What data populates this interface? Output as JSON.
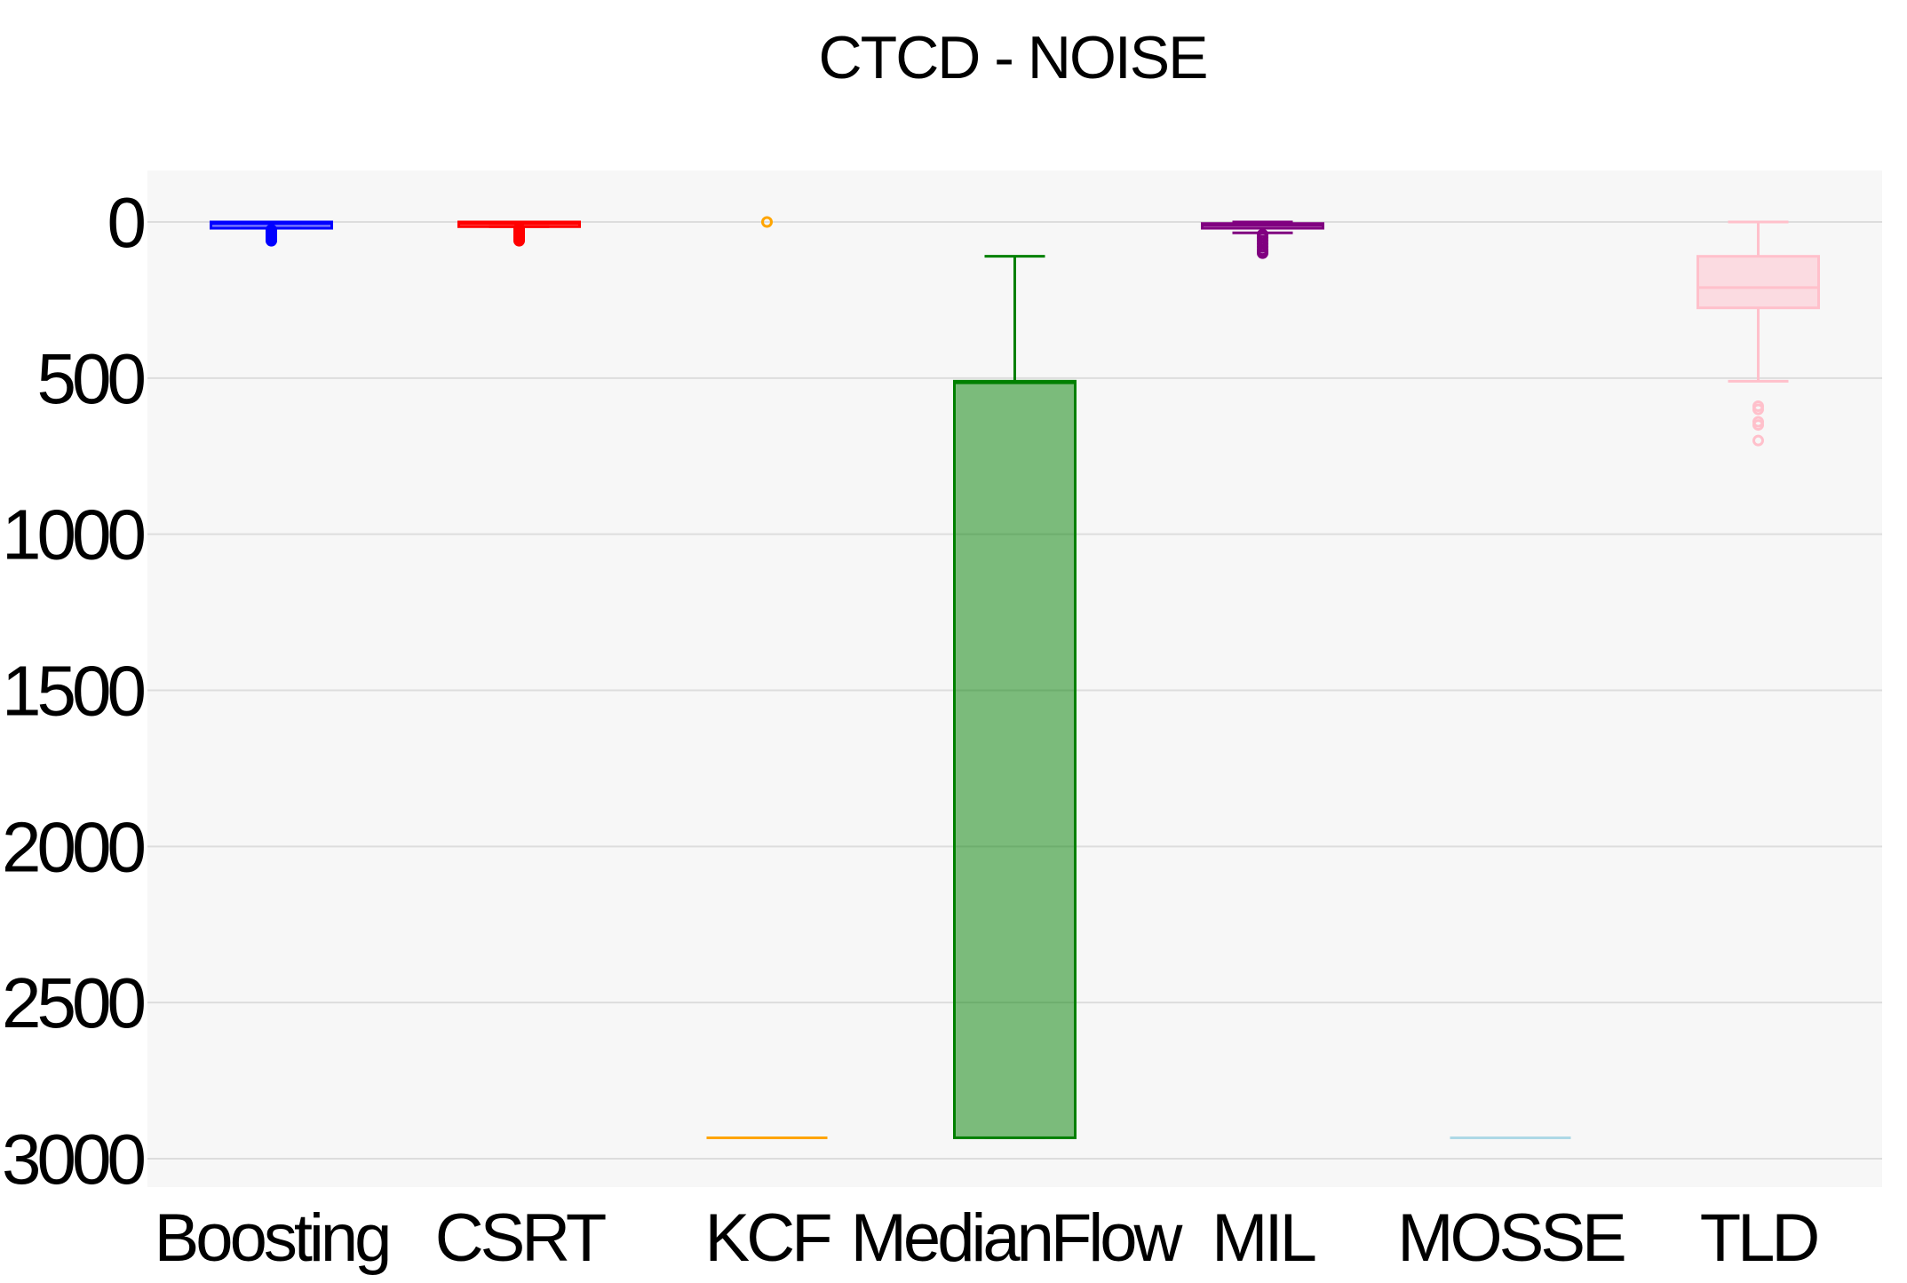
{
  "chart_data": {
    "type": "box",
    "title": "CTCD - NOISE",
    "xlabel": "",
    "ylabel": "",
    "y_reversed": true,
    "ylim": [
      -160,
      3100
    ],
    "yticks": [
      0,
      500,
      1000,
      1500,
      2000,
      2500,
      3000
    ],
    "grid": true,
    "background": "#f7f7f7",
    "categories": [
      "Boosting",
      "CSRT",
      "KCF",
      "MedianFlow",
      "MIL",
      "MOSSE",
      "TLD"
    ],
    "series": [
      {
        "category": "Boosting",
        "color": "#0000ff",
        "min": 0,
        "q1": 0,
        "median": 5,
        "q3": 20,
        "max": 20,
        "outliers": [
          25,
          30,
          35,
          40,
          45,
          50,
          55,
          60
        ]
      },
      {
        "category": "CSRT",
        "color": "#ff0000",
        "min": 0,
        "q1": 0,
        "median": 5,
        "q3": 15,
        "max": 15,
        "outliers": [
          20,
          25,
          30,
          35,
          40,
          45,
          50,
          55,
          60
        ]
      },
      {
        "category": "KCF",
        "color": "#ffa500",
        "min": 2933,
        "q1": 2933,
        "median": 2933,
        "q3": 2933,
        "max": 2933,
        "outliers": [
          0
        ]
      },
      {
        "category": "MedianFlow",
        "color": "#008000",
        "min": 110,
        "q1": 510,
        "median": 515,
        "q3": 2933,
        "max": 2933,
        "outliers": []
      },
      {
        "category": "MIL",
        "color": "#800080",
        "min": 0,
        "q1": 5,
        "median": 10,
        "q3": 20,
        "max": 35,
        "outliers": [
          40,
          50,
          60,
          70,
          80,
          90,
          95,
          100
        ]
      },
      {
        "category": "MOSSE",
        "color": "#add8e6",
        "min": 2933,
        "q1": 2933,
        "median": 2933,
        "q3": 2933,
        "max": 2933,
        "outliers": []
      },
      {
        "category": "TLD",
        "color": "#ffc0cb",
        "min": 0,
        "q1": 110,
        "median": 210,
        "q3": 275,
        "max": 510,
        "outliers": [
          590,
          600,
          640,
          650,
          700
        ]
      }
    ]
  }
}
